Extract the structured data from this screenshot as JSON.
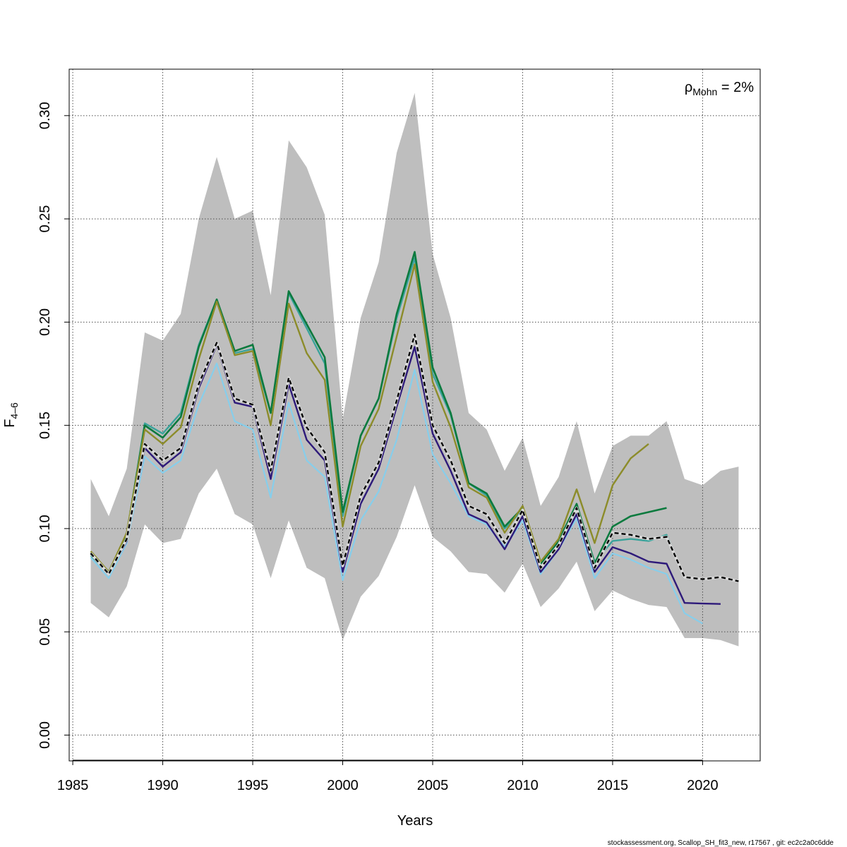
{
  "chart_data": {
    "type": "line",
    "xlabel": "Years",
    "ylabel_main": "F",
    "ylabel_sub": "4–6",
    "xlim": [
      1984.8,
      2023.2
    ],
    "ylim": [
      -0.0125,
      0.3225
    ],
    "xticks": [
      1985,
      1990,
      1995,
      2000,
      2005,
      2010,
      2015,
      2020
    ],
    "yticks": [
      0.0,
      0.05,
      0.1,
      0.15,
      0.2,
      0.25,
      0.3
    ],
    "ytick_labels": [
      "0.00",
      "0.05",
      "0.10",
      "0.15",
      "0.20",
      "0.25",
      "0.30"
    ],
    "grid": true,
    "annotation": {
      "symbol": "ρ",
      "subscript": "Mohn",
      "text": " = 2%"
    },
    "confidence_band": {
      "color": "#bebebe",
      "x": [
        1986,
        1987,
        1988,
        1989,
        1990,
        1991,
        1992,
        1993,
        1994,
        1995,
        1996,
        1997,
        1998,
        1999,
        2000,
        2001,
        2002,
        2003,
        2004,
        2005,
        2006,
        2007,
        2008,
        2009,
        2010,
        2011,
        2012,
        2013,
        2014,
        2015,
        2016,
        2017,
        2018,
        2019,
        2020,
        2021,
        2022
      ],
      "upper": [
        0.124,
        0.106,
        0.129,
        0.195,
        0.191,
        0.204,
        0.25,
        0.28,
        0.25,
        0.254,
        0.213,
        0.288,
        0.275,
        0.252,
        0.153,
        0.202,
        0.229,
        0.282,
        0.311,
        0.233,
        0.202,
        0.156,
        0.148,
        0.128,
        0.144,
        0.111,
        0.125,
        0.152,
        0.117,
        0.14,
        0.145,
        0.145,
        0.152,
        0.124,
        0.121,
        0.128,
        0.13
      ],
      "lower": [
        0.064,
        0.057,
        0.072,
        0.102,
        0.093,
        0.095,
        0.117,
        0.129,
        0.107,
        0.102,
        0.076,
        0.104,
        0.081,
        0.076,
        0.046,
        0.067,
        0.077,
        0.096,
        0.121,
        0.096,
        0.089,
        0.079,
        0.078,
        0.069,
        0.083,
        0.062,
        0.071,
        0.084,
        0.06,
        0.07,
        0.066,
        0.063,
        0.062,
        0.047,
        0.047,
        0.046,
        0.043
      ]
    },
    "series": [
      {
        "color": "#87ceeb",
        "width": 2.2,
        "dashed": false,
        "x": [
          1986,
          1987,
          1988,
          1989,
          1990,
          1991,
          1992,
          1993,
          1994,
          1995,
          1996,
          1997,
          1998,
          1999,
          2000,
          2001,
          2002,
          2003,
          2004,
          2005,
          2006,
          2007,
          2008,
          2009,
          2010,
          2011,
          2012,
          2013,
          2014,
          2015,
          2016,
          2017,
          2018,
          2019,
          2020
        ],
        "values": [
          0.086,
          0.076,
          0.093,
          0.135,
          0.127,
          0.133,
          0.16,
          0.18,
          0.152,
          0.148,
          0.115,
          0.161,
          0.133,
          0.125,
          0.075,
          0.104,
          0.118,
          0.143,
          0.177,
          0.136,
          0.122,
          0.106,
          0.102,
          0.091,
          0.104,
          0.078,
          0.09,
          0.105,
          0.076,
          0.088,
          0.085,
          0.081,
          0.078,
          0.059,
          0.054
        ]
      },
      {
        "color": "#2e1a7a",
        "width": 2.4,
        "dashed": false,
        "x": [
          1986,
          1987,
          1988,
          1989,
          1990,
          1991,
          1992,
          1993,
          1994,
          1995,
          1996,
          1997,
          1998,
          1999,
          2000,
          2001,
          2002,
          2003,
          2004,
          2005,
          2006,
          2007,
          2008,
          2009,
          2010,
          2011,
          2012,
          2013,
          2014,
          2015,
          2016,
          2017,
          2018,
          2019,
          2020,
          2021
        ],
        "values": [
          0.088,
          0.078,
          0.094,
          0.139,
          0.13,
          0.137,
          0.168,
          0.189,
          0.161,
          0.159,
          0.124,
          0.17,
          0.143,
          0.133,
          0.079,
          0.112,
          0.129,
          0.159,
          0.188,
          0.146,
          0.128,
          0.107,
          0.103,
          0.09,
          0.106,
          0.079,
          0.09,
          0.107,
          0.079,
          0.091,
          0.088,
          0.084,
          0.083,
          0.064,
          0.0637,
          0.0635
        ]
      },
      {
        "color": "#3aa39b",
        "width": 2.4,
        "dashed": false,
        "x": [
          1986,
          1987,
          1988,
          1989,
          1990,
          1991,
          1992,
          1993,
          1994,
          1995,
          1996,
          1997,
          1998,
          1999,
          2000,
          2001,
          2002,
          2003,
          2004,
          2005,
          2006,
          2007,
          2008,
          2009,
          2010,
          2011,
          2012,
          2013,
          2014,
          2015,
          2016,
          2017,
          2018,
          2019
        ],
        "values": [
          0.087,
          0.078,
          0.097,
          0.151,
          0.146,
          0.156,
          0.189,
          0.211,
          0.185,
          0.187,
          0.156,
          0.214,
          0.197,
          0.18,
          0.106,
          0.145,
          0.163,
          0.202,
          0.231,
          0.175,
          0.155,
          0.122,
          0.116,
          0.1,
          0.109,
          0.083,
          0.093,
          0.11,
          0.084,
          0.094,
          0.095,
          0.094,
          0.097,
          0.076
        ]
      },
      {
        "color": "#0b7a3e",
        "width": 2.6,
        "dashed": false,
        "x": [
          1986,
          1987,
          1988,
          1989,
          1990,
          1991,
          1992,
          1993,
          1994,
          1995,
          1996,
          1997,
          1998,
          1999,
          2000,
          2001,
          2002,
          2003,
          2004,
          2005,
          2006,
          2007,
          2008,
          2009,
          2010,
          2011,
          2012,
          2013,
          2014,
          2015,
          2016,
          2017,
          2018
        ],
        "values": [
          0.088,
          0.079,
          0.097,
          0.15,
          0.144,
          0.154,
          0.188,
          0.211,
          0.186,
          0.189,
          0.156,
          0.215,
          0.199,
          0.183,
          0.108,
          0.145,
          0.163,
          0.204,
          0.234,
          0.178,
          0.156,
          0.122,
          0.117,
          0.101,
          0.11,
          0.083,
          0.094,
          0.112,
          0.083,
          0.101,
          0.106,
          0.108,
          0.11
        ]
      },
      {
        "color": "#8c8c2a",
        "width": 2.4,
        "dashed": false,
        "x": [
          1986,
          1987,
          1988,
          1989,
          1990,
          1991,
          1992,
          1993,
          1994,
          1995,
          1996,
          1997,
          1998,
          1999,
          2000,
          2001,
          2002,
          2003,
          2004,
          2005,
          2006,
          2007,
          2008,
          2009,
          2010,
          2011,
          2012,
          2013,
          2014,
          2015,
          2016,
          2017
        ],
        "values": [
          0.089,
          0.079,
          0.098,
          0.148,
          0.141,
          0.149,
          0.182,
          0.21,
          0.184,
          0.186,
          0.15,
          0.209,
          0.185,
          0.172,
          0.101,
          0.14,
          0.158,
          0.193,
          0.228,
          0.171,
          0.149,
          0.12,
          0.115,
          0.098,
          0.111,
          0.084,
          0.095,
          0.119,
          0.093,
          0.121,
          0.134,
          0.141
        ]
      },
      {
        "color": "#000000",
        "width": 2.4,
        "dashed": true,
        "halo": true,
        "x": [
          1986,
          1987,
          1988,
          1989,
          1990,
          1991,
          1992,
          1993,
          1994,
          1995,
          1996,
          1997,
          1998,
          1999,
          2000,
          2001,
          2002,
          2003,
          2004,
          2005,
          2006,
          2007,
          2008,
          2009,
          2010,
          2011,
          2012,
          2013,
          2014,
          2015,
          2016,
          2017,
          2018,
          2019,
          2020,
          2021,
          2022
        ],
        "values": [
          0.088,
          0.078,
          0.095,
          0.141,
          0.133,
          0.139,
          0.17,
          0.19,
          0.163,
          0.16,
          0.128,
          0.173,
          0.149,
          0.137,
          0.082,
          0.116,
          0.132,
          0.162,
          0.194,
          0.15,
          0.133,
          0.111,
          0.107,
          0.093,
          0.109,
          0.081,
          0.092,
          0.11,
          0.081,
          0.098,
          0.097,
          0.095,
          0.096,
          0.0765,
          0.0755,
          0.0765,
          0.0745
        ]
      }
    ]
  },
  "footer": "stockassessment.org, Scallop_SH_fit3_new, r17567 , git: ec2c2a0c6dde"
}
